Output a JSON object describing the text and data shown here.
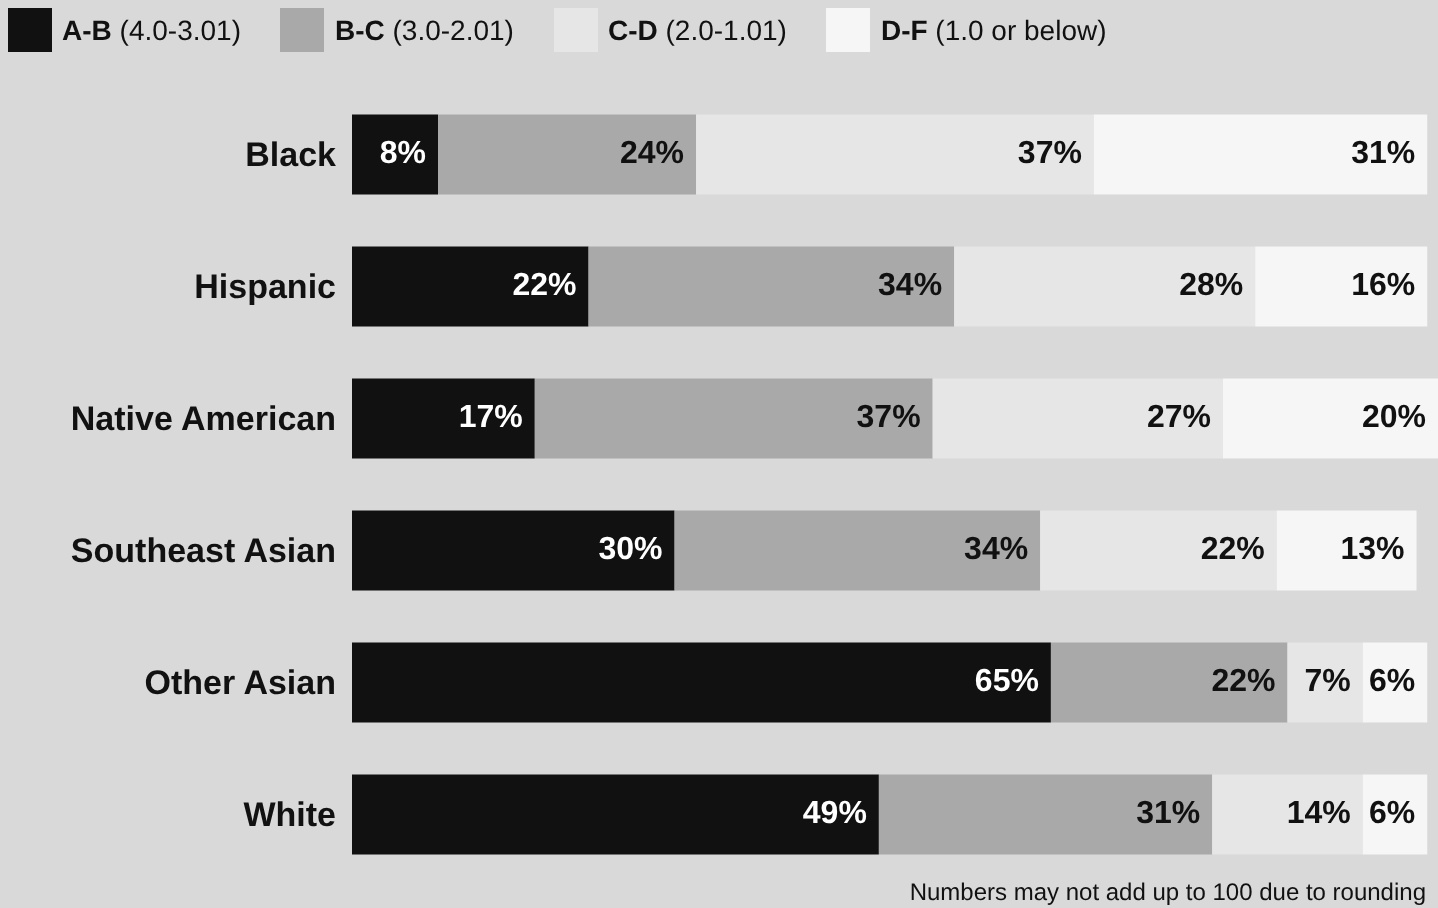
{
  "chart_data": {
    "type": "bar",
    "orientation": "horizontal",
    "stacked": true,
    "categories": [
      "Black",
      "Hispanic",
      "Native American",
      "Southeast Asian",
      "Other Asian",
      "White"
    ],
    "series": [
      {
        "name": "A-B (4.0-3.01)",
        "color": "#111111",
        "values": [
          8,
          22,
          17,
          30,
          65,
          49
        ],
        "value_labels": [
          "8%",
          "22%",
          "17%",
          "30%",
          "65%",
          "49%"
        ]
      },
      {
        "name": "B-C (3.0-2.01)",
        "color": "#a9a9a9",
        "values": [
          24,
          34,
          37,
          34,
          22,
          31
        ],
        "value_labels": [
          "24%",
          "34%",
          "37%",
          "34%",
          "22%",
          "31%"
        ]
      },
      {
        "name": "C-D (2.0-1.01)",
        "color": "#e6e6e6",
        "values": [
          37,
          28,
          27,
          22,
          7,
          14
        ],
        "value_labels": [
          "37%",
          "28%",
          "27%",
          "22%",
          "7%",
          "14%"
        ]
      },
      {
        "name": "D-F (1.0 or below)",
        "color": "#f6f6f6",
        "values": [
          31,
          16,
          20,
          13,
          6,
          6
        ],
        "value_labels": [
          "31%",
          "16%",
          "20%",
          "13%",
          "6%",
          "6%"
        ]
      }
    ],
    "xlim": [
      0,
      101
    ],
    "tick_labels": "y",
    "grid": false,
    "legend": "top left",
    "annotations": [
      "Numbers may not add up to 100 due to rounding"
    ]
  }
}
